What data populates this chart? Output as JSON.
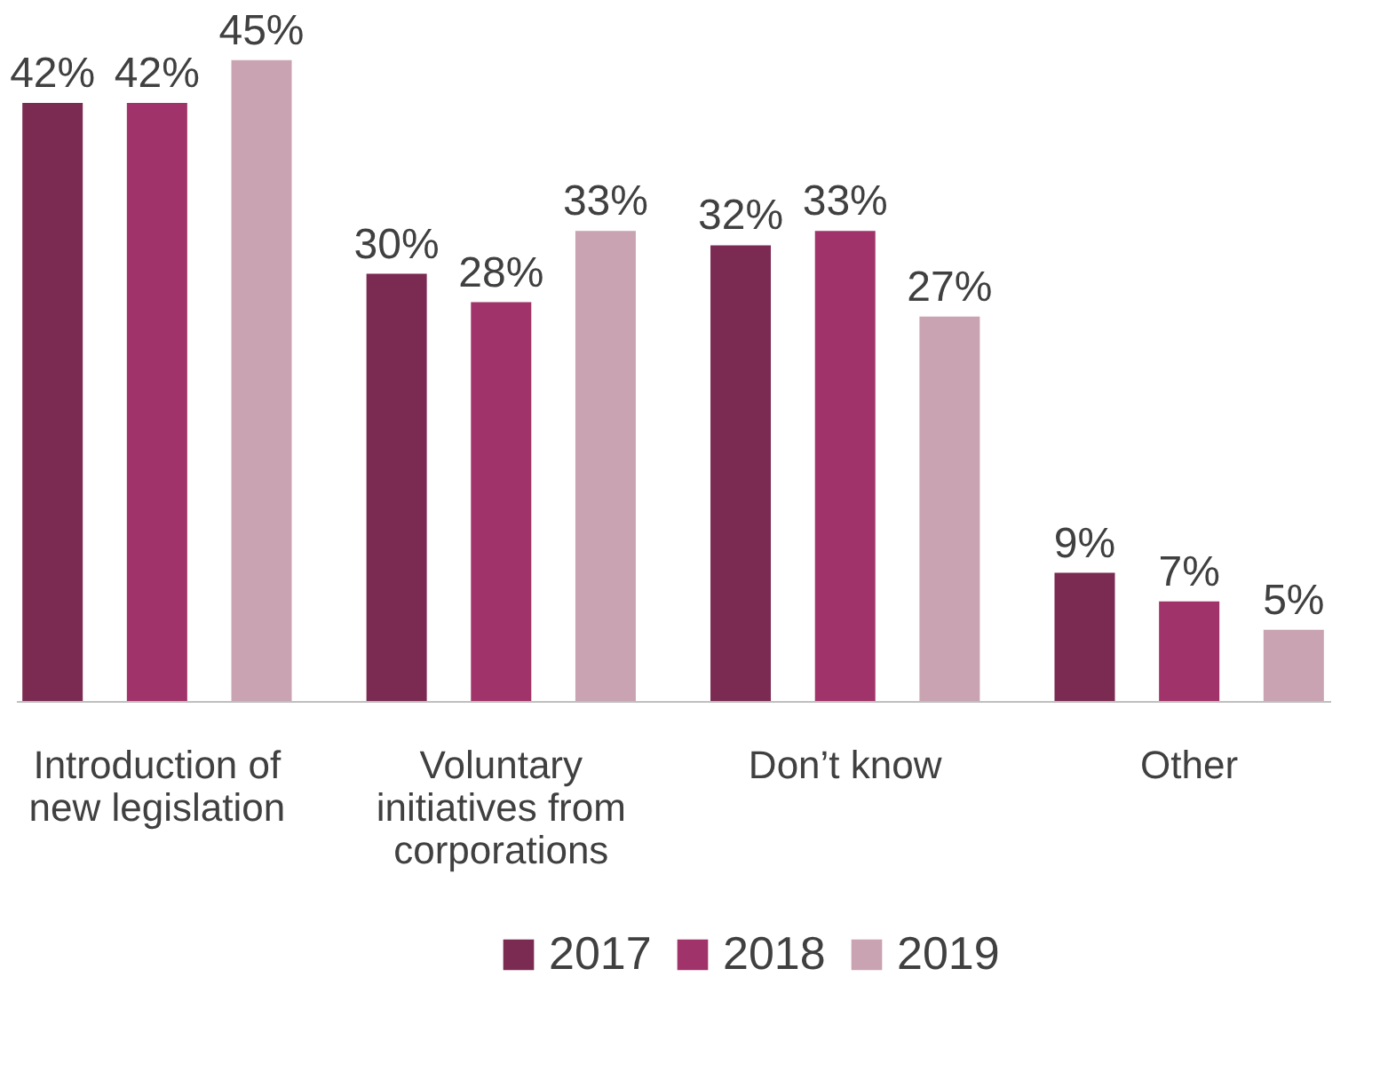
{
  "chart_data": {
    "type": "bar",
    "categories": [
      "Introduction of new legislation",
      "Voluntary initiatives from corporations",
      "Don’t know",
      "Other"
    ],
    "series": [
      {
        "name": "2017",
        "color": "#7b2a52",
        "values": [
          42,
          30,
          32,
          9
        ],
        "value_labels": [
          "42%",
          "30%",
          "32%",
          "9%"
        ]
      },
      {
        "name": "2018",
        "color": "#a0346a",
        "values": [
          42,
          28,
          33,
          7
        ],
        "value_labels": [
          "42%",
          "28%",
          "33%",
          "7%"
        ]
      },
      {
        "name": "2019",
        "color": "#c9a3b1",
        "values": [
          45,
          33,
          27,
          5
        ],
        "value_labels": [
          "45%",
          "33%",
          "27%",
          "5%"
        ]
      }
    ],
    "legend": "bottom",
    "grid": false
  }
}
